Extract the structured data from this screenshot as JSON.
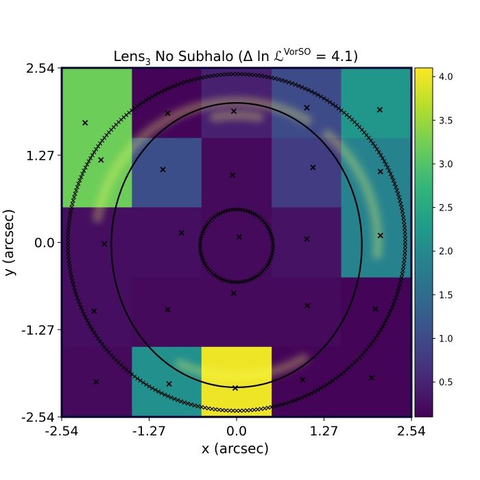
{
  "chart_data": {
    "type": "heatmap",
    "title": {
      "lens": "Lens",
      "lens_sub": "3",
      "middle": " No Subhalo (Δ ln ",
      "L": "ℒ",
      "sup": "VorSO",
      "end": " =  4.1)"
    },
    "xlabel": "x (arcsec)",
    "ylabel": "y (arcsec)",
    "xlim": [
      -2.54,
      2.54
    ],
    "ylim": [
      -2.54,
      2.54
    ],
    "xticks": [
      -2.54,
      -1.27,
      0.0,
      1.27,
      2.54
    ],
    "yticks": [
      -2.54,
      -1.27,
      0.0,
      1.27,
      2.54
    ],
    "xtick_labels": [
      "-2.54",
      "-1.27",
      "0.0",
      "1.27",
      "2.54"
    ],
    "ytick_labels": [
      "-2.54",
      "-1.27",
      "0.0",
      "1.27",
      "2.54"
    ],
    "grid_edges": [
      -2.54,
      -1.52,
      -0.51,
      0.51,
      1.52,
      2.54
    ],
    "grid_values": [
      [
        3.2,
        0.15,
        0.45,
        1.0,
        2.2
      ],
      [
        3.2,
        1.05,
        0.2,
        0.8,
        1.9
      ],
      [
        0.25,
        0.25,
        0.2,
        0.3,
        1.9
      ],
      [
        0.25,
        0.2,
        0.2,
        0.2,
        0.15
      ],
      [
        0.2,
        2.1,
        4.0,
        0.15,
        0.15
      ]
    ],
    "colorbar": {
      "min": 0.1,
      "max": 4.1,
      "ticks": [
        0.5,
        1.0,
        1.5,
        2.0,
        2.5,
        3.0,
        3.5,
        4.0
      ],
      "tick_labels": [
        "0.5",
        "1.0",
        "1.5",
        "2.0",
        "2.5",
        "3.0",
        "3.5",
        "4.0"
      ],
      "colormap": "viridis"
    },
    "crosses": [
      [
        -2.2,
        1.74
      ],
      [
        -1.97,
        1.2
      ],
      [
        -1.92,
        -0.02
      ],
      [
        -2.07,
        -1.0
      ],
      [
        -2.04,
        -2.03
      ],
      [
        -1.0,
        1.88
      ],
      [
        -1.07,
        1.06
      ],
      [
        -0.8,
        0.14
      ],
      [
        -1.0,
        -0.98
      ],
      [
        -0.98,
        -2.06
      ],
      [
        -0.04,
        1.91
      ],
      [
        -0.06,
        0.98
      ],
      [
        0.04,
        0.08
      ],
      [
        -0.04,
        -0.74
      ],
      [
        -0.02,
        -2.12
      ],
      [
        1.02,
        1.96
      ],
      [
        1.11,
        1.09
      ],
      [
        1.02,
        0.05
      ],
      [
        1.03,
        -0.92
      ],
      [
        0.96,
        -2.0
      ],
      [
        2.08,
        1.93
      ],
      [
        2.09,
        1.03
      ],
      [
        2.09,
        0.1
      ],
      [
        2.02,
        -0.97
      ],
      [
        1.96,
        -1.97
      ]
    ],
    "outer_ring": {
      "center": [
        0.0,
        0.0
      ],
      "radius": 2.45
    },
    "inner_ring": {
      "center": [
        0.0,
        -0.05
      ],
      "radius": 0.53
    },
    "critical_curve": {
      "center": [
        0.0,
        -0.04
      ],
      "rx": 1.82,
      "ry": 2.07
    },
    "arc_segments": [
      {
        "center": [
          0.0,
          0.0
        ],
        "radius": 2.05,
        "from_deg": 60,
        "to_deg": 170
      },
      {
        "center": [
          0.0,
          0.0
        ],
        "radius": 2.05,
        "from_deg": -5,
        "to_deg": 50
      },
      {
        "center": [
          0.0,
          0.0
        ],
        "radius": 1.95,
        "from_deg": 245,
        "to_deg": 300
      },
      {
        "center": [
          0.0,
          0.0
        ],
        "radius": 1.85,
        "from_deg": 80,
        "to_deg": 100
      }
    ],
    "colors": {
      "frame": "#000033",
      "curve": "#000000",
      "arc_glow": "#ffff66"
    }
  }
}
